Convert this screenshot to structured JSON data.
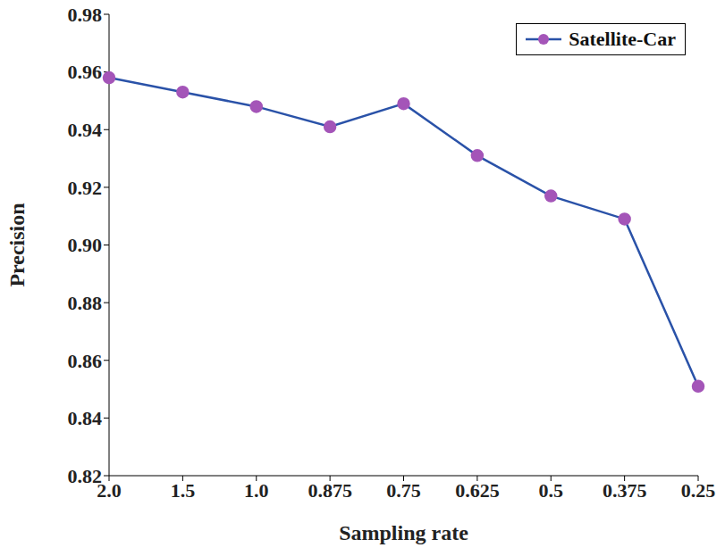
{
  "chart_data": {
    "type": "line",
    "xlabel": "Sampling rate",
    "ylabel": "Precision",
    "categories": [
      "2.0",
      "1.5",
      "1.0",
      "0.875",
      "0.75",
      "0.625",
      "0.5",
      "0.375",
      "0.25"
    ],
    "series": [
      {
        "name": "Satellite-Car",
        "color": "#2a52a8",
        "marker": "circle",
        "values": [
          0.958,
          0.953,
          0.948,
          0.941,
          0.949,
          0.931,
          0.917,
          0.909,
          0.851
        ]
      }
    ],
    "ylim": [
      0.82,
      0.98
    ],
    "yticks": [
      0.82,
      0.84,
      0.86,
      0.88,
      {
        "value": 0.9,
        "label": "0.90"
      },
      0.92,
      0.94,
      0.96,
      0.98
    ],
    "grid": false,
    "legend": "upper right"
  }
}
